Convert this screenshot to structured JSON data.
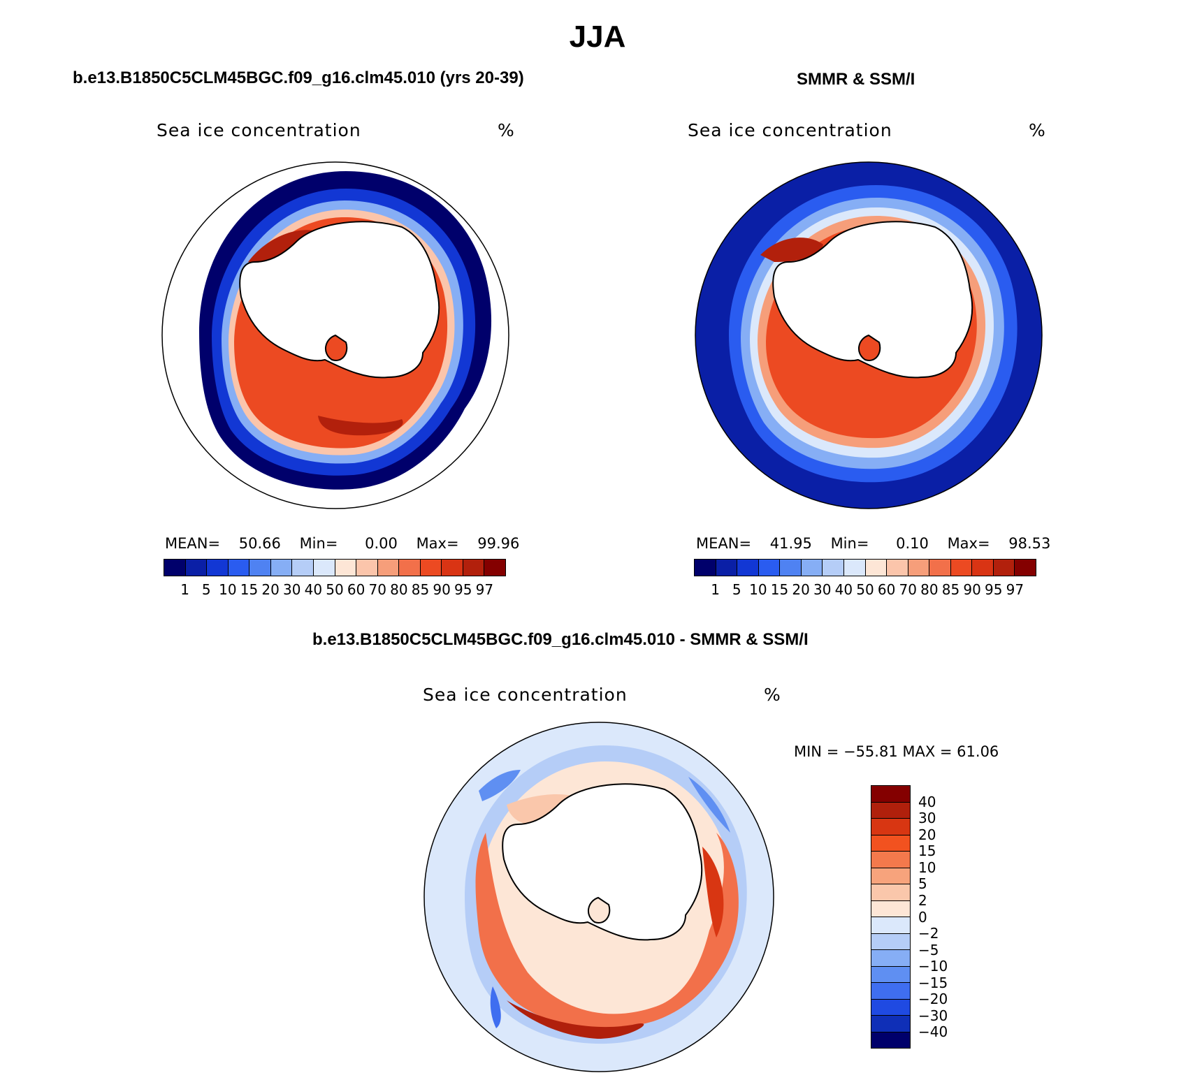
{
  "title": "JJA",
  "model_case": "b.e13.B1850C5CLM45BGC.f09_g16.clm45.010 (yrs 20-39)",
  "obs_case": "SMMR & SSM/I",
  "diff_case": "b.e13.B1850C5CLM45BGC.f09_g16.clm45.010 - SMMR & SSM/I",
  "panels": {
    "model": {
      "title": "Sea ice concentration",
      "units": "%",
      "mean_label": "MEAN=",
      "mean": "50.66",
      "min_label": "Min=",
      "min": "0.00",
      "max_label": "Max=",
      "max": "99.96"
    },
    "obs": {
      "title": "Sea ice concentration",
      "units": "%",
      "mean_label": "MEAN=",
      "mean": "41.95",
      "min_label": "Min=",
      "min": "0.10",
      "max_label": "Max=",
      "max": "98.53"
    },
    "diff": {
      "title": "Sea ice concentration",
      "units": "%",
      "minmax": "MIN = −55.81  MAX =   61.06"
    }
  },
  "colorbar_abs": {
    "colors": [
      "#00006b",
      "#0a1fa6",
      "#1237d4",
      "#2a5cf0",
      "#4f82f2",
      "#86aef5",
      "#b5cdf7",
      "#dbe8fb",
      "#fde6d6",
      "#fbc5ab",
      "#f69e7a",
      "#f2704a",
      "#ec4a22",
      "#d93414",
      "#b2200c",
      "#840000"
    ],
    "labels": [
      "1",
      "5",
      "10",
      "15",
      "20",
      "30",
      "40",
      "50",
      "60",
      "70",
      "80",
      "85",
      "90",
      "95",
      "97"
    ]
  },
  "colorbar_diff": {
    "colors": [
      "#840000",
      "#b0200c",
      "#d83612",
      "#f2521f",
      "#f4794c",
      "#f7a37c",
      "#fac7ab",
      "#fde6d6",
      "#dbe8fb",
      "#b5cdf7",
      "#86aef5",
      "#5f8ff2",
      "#3f6ef0",
      "#1f4ae2",
      "#0f2fb7",
      "#00006b"
    ],
    "labels": [
      "40",
      "30",
      "20",
      "15",
      "10",
      "5",
      "2",
      "0",
      "−2",
      "−5",
      "−10",
      "−15",
      "−20",
      "−30",
      "−40"
    ]
  }
}
